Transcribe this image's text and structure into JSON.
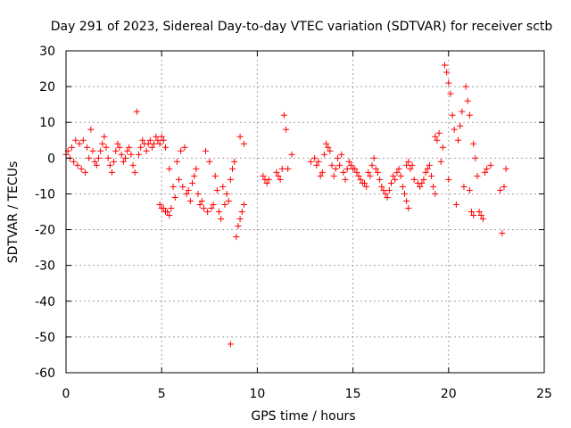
{
  "chart_data": {
    "type": "scatter",
    "title": "Day 291 of 2023, Sidereal Day-to-day VTEC variation (SDTVAR) for receiver sctb",
    "xlabel": "GPS time / hours",
    "ylabel": "SDTVAR / TECUs",
    "xlim": [
      0,
      25
    ],
    "ylim": [
      -60,
      30
    ],
    "xticks": [
      "0",
      "5",
      "10",
      "15",
      "20",
      "25"
    ],
    "yticks": [
      "30",
      "20",
      "10",
      "0",
      "-10",
      "-20",
      "-30",
      "-40",
      "-50",
      "-60"
    ],
    "grid": true,
    "marker": "+",
    "color": "#ff0000",
    "series": [
      {
        "name": "SDTVAR",
        "points": [
          [
            0.0,
            1
          ],
          [
            0.1,
            2
          ],
          [
            0.2,
            0
          ],
          [
            0.3,
            3
          ],
          [
            0.4,
            -1
          ],
          [
            0.5,
            5
          ],
          [
            0.6,
            -2
          ],
          [
            0.7,
            4
          ],
          [
            0.8,
            -3
          ],
          [
            0.9,
            5
          ],
          [
            1.0,
            -4
          ],
          [
            1.1,
            3
          ],
          [
            1.2,
            0
          ],
          [
            1.3,
            8
          ],
          [
            1.4,
            2
          ],
          [
            1.5,
            -1
          ],
          [
            1.6,
            -2
          ],
          [
            1.7,
            0
          ],
          [
            1.8,
            2
          ],
          [
            1.9,
            4
          ],
          [
            2.0,
            6
          ],
          [
            2.1,
            3
          ],
          [
            2.2,
            0
          ],
          [
            2.3,
            -2
          ],
          [
            2.4,
            -4
          ],
          [
            2.5,
            -1
          ],
          [
            2.6,
            2
          ],
          [
            2.7,
            4
          ],
          [
            2.8,
            3
          ],
          [
            2.9,
            1
          ],
          [
            3.0,
            -1
          ],
          [
            3.1,
            0
          ],
          [
            3.2,
            2
          ],
          [
            3.3,
            3
          ],
          [
            3.4,
            1
          ],
          [
            3.5,
            -2
          ],
          [
            3.6,
            -4
          ],
          [
            3.7,
            13
          ],
          [
            3.8,
            1
          ],
          [
            3.9,
            3
          ],
          [
            4.0,
            5
          ],
          [
            4.1,
            4
          ],
          [
            4.2,
            2
          ],
          [
            4.3,
            4
          ],
          [
            4.4,
            5
          ],
          [
            4.5,
            3
          ],
          [
            4.6,
            4
          ],
          [
            4.7,
            6
          ],
          [
            4.8,
            5
          ],
          [
            4.9,
            4
          ],
          [
            5.0,
            6
          ],
          [
            5.1,
            5
          ],
          [
            5.2,
            3
          ],
          [
            4.9,
            -13
          ],
          [
            5.0,
            -14
          ],
          [
            5.1,
            -14
          ],
          [
            5.2,
            -15
          ],
          [
            5.3,
            -15
          ],
          [
            5.4,
            -16
          ],
          [
            5.5,
            -14
          ],
          [
            5.4,
            -3
          ],
          [
            5.6,
            -8
          ],
          [
            5.7,
            -11
          ],
          [
            5.8,
            -1
          ],
          [
            5.9,
            -6
          ],
          [
            6.0,
            2
          ],
          [
            6.1,
            -8
          ],
          [
            6.2,
            3
          ],
          [
            6.3,
            -10
          ],
          [
            6.4,
            -9
          ],
          [
            6.5,
            -12
          ],
          [
            6.6,
            -7
          ],
          [
            6.7,
            -5
          ],
          [
            6.8,
            -3
          ],
          [
            6.9,
            -10
          ],
          [
            7.0,
            -13
          ],
          [
            7.1,
            -12
          ],
          [
            7.2,
            -14
          ],
          [
            7.3,
            2
          ],
          [
            7.4,
            -15
          ],
          [
            7.5,
            -1
          ],
          [
            7.6,
            -14
          ],
          [
            7.7,
            -13
          ],
          [
            7.8,
            -5
          ],
          [
            7.9,
            -9
          ],
          [
            8.0,
            -15
          ],
          [
            8.1,
            -17
          ],
          [
            8.2,
            -8
          ],
          [
            8.3,
            -13
          ],
          [
            8.4,
            -10
          ],
          [
            8.5,
            -12
          ],
          [
            8.6,
            -6
          ],
          [
            8.7,
            -3
          ],
          [
            8.8,
            -1
          ],
          [
            8.9,
            -22
          ],
          [
            9.0,
            -19
          ],
          [
            9.1,
            -17
          ],
          [
            9.2,
            -15
          ],
          [
            9.3,
            -13
          ],
          [
            9.1,
            6
          ],
          [
            9.3,
            4
          ],
          [
            8.6,
            -52
          ],
          [
            10.3,
            -5
          ],
          [
            10.4,
            -6
          ],
          [
            10.5,
            -7
          ],
          [
            10.6,
            -6
          ],
          [
            11.0,
            -4
          ],
          [
            11.1,
            -5
          ],
          [
            11.2,
            -6
          ],
          [
            11.3,
            -3
          ],
          [
            11.4,
            12
          ],
          [
            11.5,
            8
          ],
          [
            11.6,
            -3
          ],
          [
            11.8,
            1
          ],
          [
            12.8,
            -1
          ],
          [
            13.0,
            0
          ],
          [
            13.1,
            -2
          ],
          [
            13.2,
            -1
          ],
          [
            13.3,
            -5
          ],
          [
            13.4,
            -4
          ],
          [
            13.5,
            1
          ],
          [
            13.6,
            4
          ],
          [
            13.7,
            3
          ],
          [
            13.8,
            2
          ],
          [
            13.9,
            -2
          ],
          [
            14.0,
            -5
          ],
          [
            14.1,
            -3
          ],
          [
            14.2,
            0
          ],
          [
            14.3,
            -2
          ],
          [
            14.4,
            1
          ],
          [
            14.5,
            -4
          ],
          [
            14.6,
            -6
          ],
          [
            14.7,
            -3
          ],
          [
            14.8,
            -1
          ],
          [
            14.9,
            -2
          ],
          [
            15.0,
            -3
          ],
          [
            15.1,
            -3
          ],
          [
            15.2,
            -4
          ],
          [
            15.3,
            -5
          ],
          [
            15.4,
            -6
          ],
          [
            15.5,
            -7
          ],
          [
            15.6,
            -7
          ],
          [
            15.7,
            -8
          ],
          [
            15.8,
            -4
          ],
          [
            15.9,
            -5
          ],
          [
            16.0,
            -2
          ],
          [
            16.1,
            0
          ],
          [
            16.2,
            -3
          ],
          [
            16.3,
            -4
          ],
          [
            16.4,
            -6
          ],
          [
            16.5,
            -8
          ],
          [
            16.6,
            -9
          ],
          [
            16.7,
            -10
          ],
          [
            16.8,
            -11
          ],
          [
            16.9,
            -9
          ],
          [
            17.0,
            -7
          ],
          [
            17.1,
            -5
          ],
          [
            17.2,
            -6
          ],
          [
            17.3,
            -4
          ],
          [
            17.4,
            -3
          ],
          [
            17.5,
            -5
          ],
          [
            17.6,
            -8
          ],
          [
            17.7,
            -10
          ],
          [
            17.8,
            -12
          ],
          [
            17.9,
            -14
          ],
          [
            17.8,
            -2
          ],
          [
            17.9,
            -1
          ],
          [
            18.0,
            -3
          ],
          [
            18.1,
            -2
          ],
          [
            18.2,
            -6
          ],
          [
            18.4,
            -7
          ],
          [
            18.5,
            -8
          ],
          [
            18.6,
            -7
          ],
          [
            18.7,
            -6
          ],
          [
            18.8,
            -4
          ],
          [
            18.9,
            -3
          ],
          [
            19.0,
            -2
          ],
          [
            19.1,
            -5
          ],
          [
            19.2,
            -8
          ],
          [
            19.3,
            -10
          ],
          [
            19.3,
            6
          ],
          [
            19.4,
            5
          ],
          [
            19.5,
            7
          ],
          [
            19.6,
            -1
          ],
          [
            19.7,
            3
          ],
          [
            19.8,
            26
          ],
          [
            19.9,
            24
          ],
          [
            20.0,
            21
          ],
          [
            20.1,
            18
          ],
          [
            20.2,
            12
          ],
          [
            20.3,
            8
          ],
          [
            20.0,
            -6
          ],
          [
            20.4,
            -13
          ],
          [
            20.5,
            5
          ],
          [
            20.6,
            9
          ],
          [
            20.7,
            13
          ],
          [
            20.8,
            -8
          ],
          [
            20.9,
            20
          ],
          [
            21.0,
            16
          ],
          [
            21.1,
            12
          ],
          [
            21.2,
            -15
          ],
          [
            21.3,
            -16
          ],
          [
            21.1,
            -9
          ],
          [
            21.3,
            4
          ],
          [
            21.4,
            0
          ],
          [
            21.5,
            -5
          ],
          [
            21.6,
            -15
          ],
          [
            21.7,
            -16
          ],
          [
            21.8,
            -17
          ],
          [
            21.9,
            -4
          ],
          [
            22.0,
            -3
          ],
          [
            22.2,
            -2
          ],
          [
            22.7,
            -9
          ],
          [
            22.8,
            -21
          ],
          [
            22.9,
            -8
          ],
          [
            23.0,
            -3
          ]
        ]
      }
    ]
  }
}
